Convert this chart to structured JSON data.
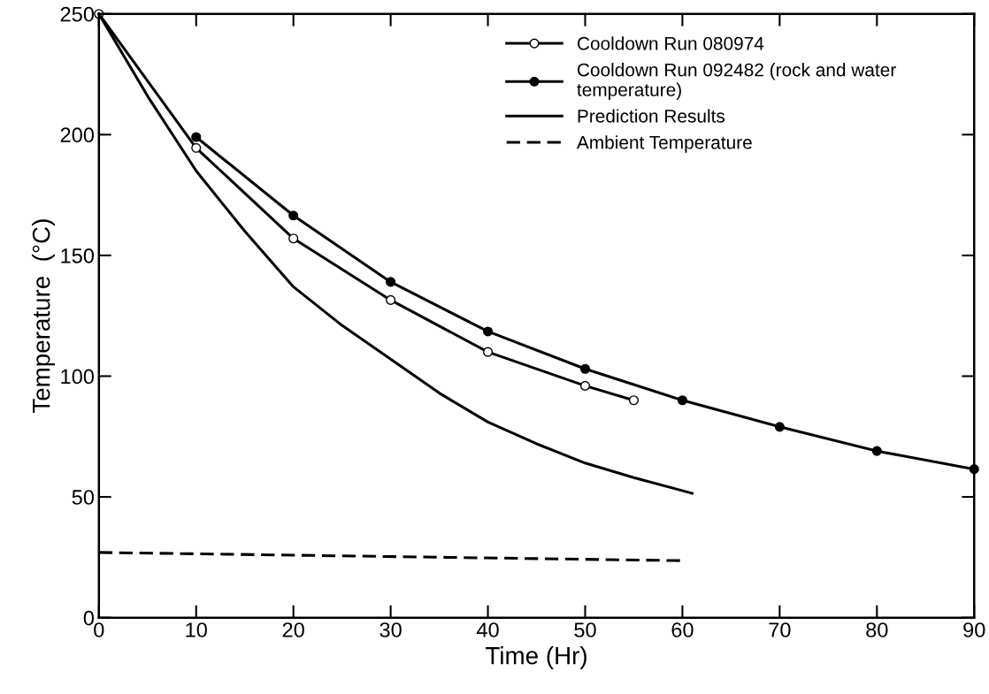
{
  "chart_data": {
    "type": "line",
    "xlabel": "Time (Hr)",
    "ylabel": "Temperature  (°C)",
    "xlim": [
      0,
      90
    ],
    "ylim": [
      0,
      250
    ],
    "xticks": [
      0,
      10,
      20,
      30,
      40,
      50,
      60,
      70,
      80,
      90
    ],
    "yticks": [
      0,
      50,
      100,
      150,
      200,
      250
    ],
    "grid": false,
    "legend": "top right",
    "line_style": "solid",
    "series": [
      {
        "name": "Cooldown Run 080974",
        "color": "#000000",
        "marker": "circle-open",
        "x": [
          0,
          10,
          20,
          30,
          40,
          50,
          55
        ],
        "values": [
          250,
          194.5,
          157,
          131.5,
          110,
          96,
          90
        ]
      },
      {
        "name": "Cooldown Run 092482 (rock and water\ntemperature)",
        "color": "#000000",
        "marker": "circle",
        "x": [
          10,
          20,
          30,
          40,
          50,
          60,
          70,
          80,
          90
        ],
        "values": [
          199,
          166.5,
          139,
          118.5,
          103,
          90,
          79,
          69,
          61.5
        ]
      },
      {
        "name": "Prediction Results",
        "color": "#000000",
        "marker": "none",
        "x": [
          0,
          5,
          10,
          15,
          20,
          25,
          30,
          35,
          40,
          45,
          50,
          55,
          61
        ],
        "values": [
          250,
          216,
          185,
          160,
          137,
          121,
          107,
          93,
          81,
          72,
          64,
          58,
          51.5
        ]
      },
      {
        "name": "Ambient Temperature",
        "color": "#000000",
        "marker": "none",
        "line_style": "dashed",
        "x": [
          0,
          60
        ],
        "values": [
          27,
          23.6
        ]
      }
    ]
  }
}
